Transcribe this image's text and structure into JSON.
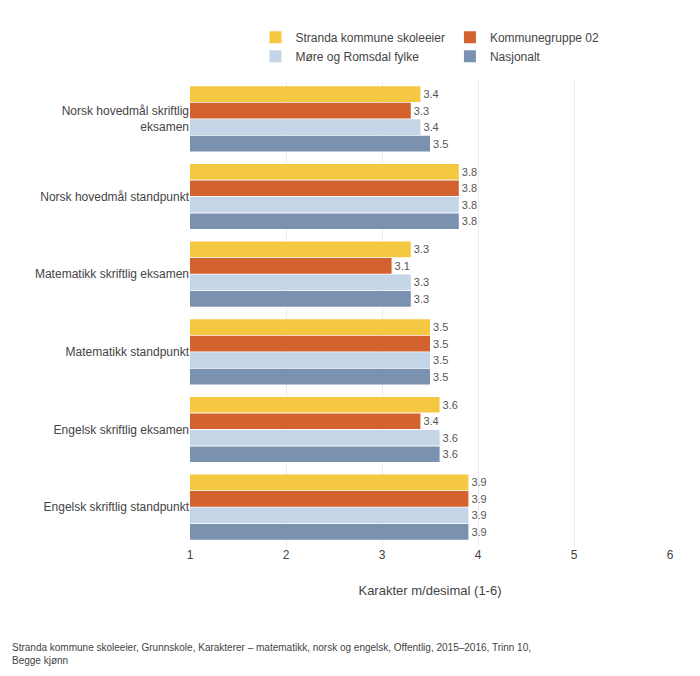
{
  "chart_data": {
    "type": "bar",
    "orientation": "horizontal",
    "categories": [
      "Norsk hovedmål skriftlig\neksamen",
      "Norsk hovedmål standpunkt",
      "Matematikk skriftlig eksamen",
      "Matematikk standpunkt",
      "Engelsk skriftlig eksamen",
      "Engelsk skriftlig standpunkt"
    ],
    "series": [
      {
        "name": "Stranda kommune skoleeier",
        "color": "#F5C842",
        "values": [
          3.4,
          3.8,
          3.3,
          3.5,
          3.6,
          3.9
        ]
      },
      {
        "name": "Kommunegruppe 02",
        "color": "#D4622E",
        "values": [
          3.3,
          3.8,
          3.1,
          3.5,
          3.4,
          3.9
        ]
      },
      {
        "name": "Møre og Romsdal fylke",
        "color": "#C5D5E8",
        "values": [
          3.4,
          3.8,
          3.3,
          3.5,
          3.6,
          3.9
        ]
      },
      {
        "name": "Nasjonalt",
        "color": "#7A92B0",
        "values": [
          3.5,
          3.8,
          3.3,
          3.5,
          3.6,
          3.9
        ]
      }
    ],
    "xlabel": "Karakter m/desimal (1-6)",
    "xlim": [
      1,
      6
    ],
    "xticks": [
      1,
      2,
      3,
      4,
      5,
      6
    ],
    "grid": true,
    "legend": "top",
    "data_labels": true,
    "annotations": [
      {
        "text": "Stranda kommune skoleeier, Grunnskole, Karakterer – matematikk, norsk og engelsk, Offentlig, 2015–2016, Trinn 10,\nBegge kjønn"
      }
    ]
  }
}
